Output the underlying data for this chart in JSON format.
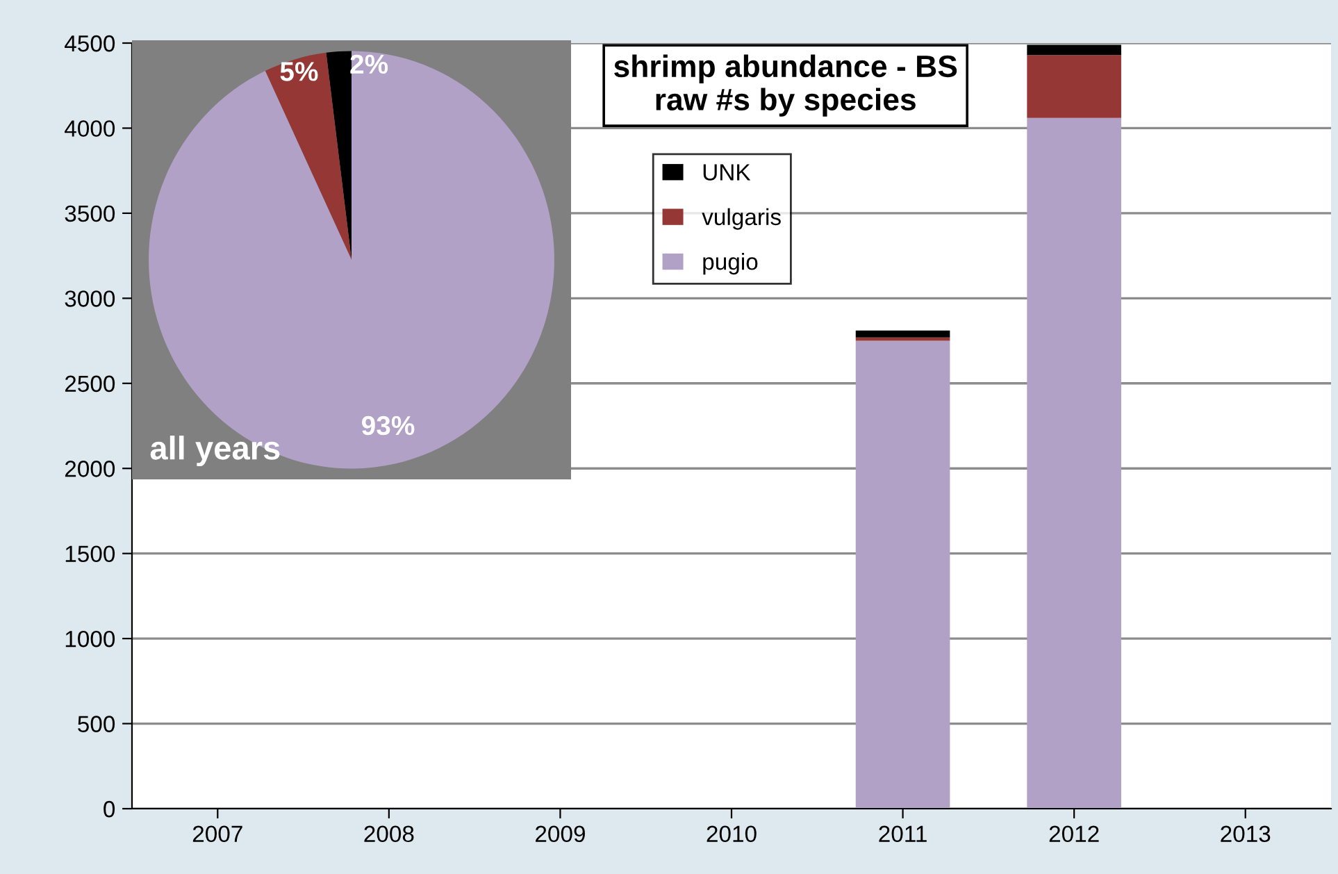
{
  "chart_data": [
    {
      "type": "bar",
      "title": "shrimp abundance - BS\nraw #s by species",
      "categories": [
        "2007",
        "2008",
        "2009",
        "2010",
        "2011",
        "2012",
        "2013"
      ],
      "stacked": true,
      "ylim": [
        0,
        4500
      ],
      "yticks": [
        0,
        500,
        1000,
        1500,
        2000,
        2500,
        3000,
        3500,
        4000,
        4500
      ],
      "grid": "y",
      "legend": "top",
      "series": [
        {
          "name": "pugio",
          "color": "#b1a1c7",
          "values": [
            0,
            0,
            0,
            0,
            2750,
            4060,
            0
          ]
        },
        {
          "name": "vulgaris",
          "color": "#953735",
          "values": [
            0,
            0,
            0,
            0,
            20,
            370,
            0
          ]
        },
        {
          "name": "UNK",
          "color": "#000000",
          "values": [
            0,
            0,
            0,
            0,
            40,
            60,
            0
          ]
        }
      ]
    },
    {
      "type": "pie",
      "title": "all years",
      "categories": [
        null,
        null,
        null
      ],
      "values": [
        2,
        5,
        93
      ],
      "colors": [
        "#000000",
        "#953735",
        "#b1a1c7"
      ],
      "value_labels": [
        "2%",
        "5%",
        "93%"
      ]
    }
  ]
}
